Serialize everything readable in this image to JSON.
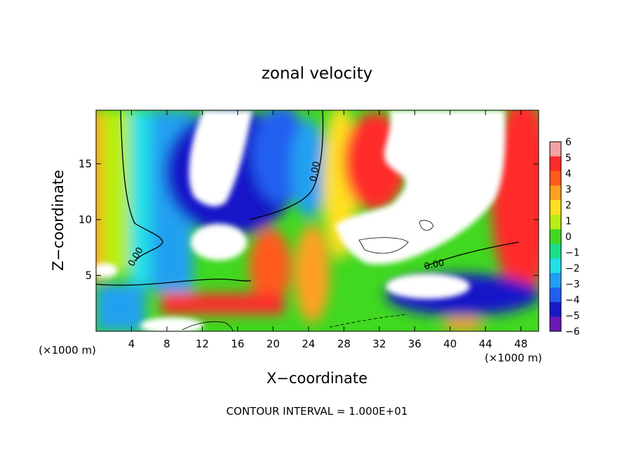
{
  "chart_data": {
    "type": "heatmap",
    "title": "zonal velocity",
    "xlabel": "X−coordinate",
    "ylabel": "Z−coordinate",
    "x_unit_left": "(×1000 m)",
    "x_unit_right": "(×1000 m)",
    "x_ticks": [
      "4",
      "8",
      "12",
      "16",
      "20",
      "24",
      "28",
      "32",
      "36",
      "40",
      "44",
      "48"
    ],
    "x_tick_values": [
      4,
      8,
      12,
      16,
      20,
      24,
      28,
      32,
      36,
      40,
      44,
      48
    ],
    "y_ticks": [
      "5",
      "10",
      "15"
    ],
    "y_tick_values": [
      5,
      10,
      15
    ],
    "xlim": [
      0,
      50
    ],
    "ylim": [
      0,
      19.8
    ],
    "contour_label": "0.00",
    "footer": "CONTOUR INTERVAL = 1.000E+01",
    "colorbar": {
      "ticks": [
        "6",
        "5",
        "4",
        "3",
        "2",
        "1",
        "0",
        "−1",
        "−2",
        "−3",
        "−4",
        "−5",
        "−6"
      ],
      "tick_values": [
        6,
        5,
        4,
        3,
        2,
        1,
        0,
        -1,
        -2,
        -3,
        -4,
        -5,
        -6
      ],
      "colors": [
        "#f2a2a2",
        "#ff2a2a",
        "#ff5a1a",
        "#ffa020",
        "#ffe020",
        "#b8ee10",
        "#40d820",
        "#18e088",
        "#20e0e8",
        "#20a0f0",
        "#2060f0",
        "#1818c8",
        "#6a1ab8"
      ]
    }
  }
}
